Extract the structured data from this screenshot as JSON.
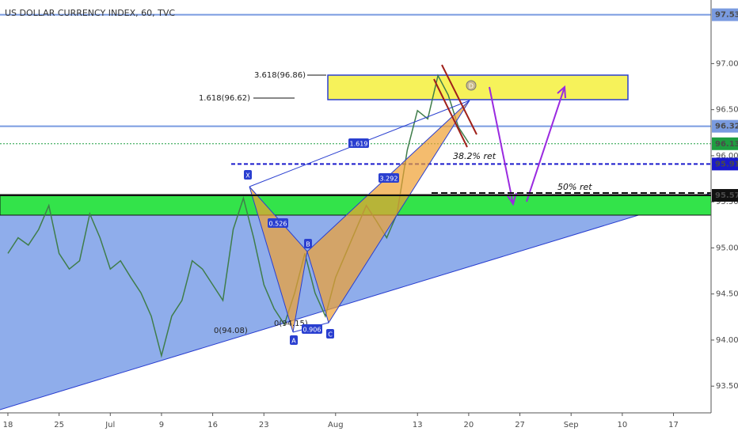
{
  "chart_data": {
    "type": "line",
    "title": "US DOLLAR CURRENCY INDEX, 60, TVC",
    "x": [
      0,
      1,
      2,
      3,
      4,
      5,
      6,
      7,
      8,
      9,
      10,
      11,
      12,
      13,
      14,
      15,
      16,
      17,
      18,
      19,
      20,
      21,
      22,
      23,
      24,
      25,
      26,
      27,
      28,
      29,
      30,
      31,
      32,
      33,
      34,
      35,
      36,
      37,
      38,
      39,
      40,
      41,
      42,
      43,
      44,
      45
    ],
    "values": [
      94.94,
      95.11,
      95.03,
      95.2,
      95.46,
      94.94,
      94.77,
      94.86,
      95.37,
      95.11,
      94.77,
      94.86,
      94.68,
      94.51,
      94.26,
      93.83,
      94.26,
      94.43,
      94.86,
      94.77,
      94.6,
      94.43,
      95.2,
      95.54,
      95.11,
      94.6,
      94.34,
      94.17,
      94.51,
      94.94,
      94.51,
      94.26,
      94.68,
      94.94,
      95.2,
      95.46,
      95.29,
      95.11,
      95.37,
      96.06,
      96.49,
      96.4,
      96.87,
      96.66,
      96.31,
      96.14
    ],
    "color": "#3f7d4a",
    "xlim": [
      -0.77,
      68.67
    ],
    "xticks": [
      {
        "value": 0,
        "label": "18"
      },
      {
        "value": 5,
        "label": "25"
      },
      {
        "value": 10,
        "label": "Jul"
      },
      {
        "value": 15,
        "label": "9"
      },
      {
        "value": 20,
        "label": "16"
      },
      {
        "value": 25,
        "label": "23"
      },
      {
        "value": 32,
        "label": "Aug"
      },
      {
        "value": 40,
        "label": "13"
      },
      {
        "value": 45,
        "label": "20"
      },
      {
        "value": 50,
        "label": "27"
      },
      {
        "value": 55,
        "label": "Sep"
      },
      {
        "value": 60,
        "label": "10"
      },
      {
        "value": 65,
        "label": "17"
      }
    ],
    "ylim": [
      93.21,
      97.69
    ],
    "yticks": [
      {
        "value": 93.5,
        "label": "93.50"
      },
      {
        "value": 94,
        "label": "94.00"
      },
      {
        "value": 94.5,
        "label": "94.50"
      },
      {
        "value": 95,
        "label": "95.00"
      },
      {
        "value": 95.5,
        "label": "95.50"
      },
      {
        "value": 96,
        "label": "96.00"
      },
      {
        "value": 96.5,
        "label": "96.50"
      },
      {
        "value": 97,
        "label": "97.00"
      }
    ],
    "grid": false,
    "levels": [
      {
        "value": 97.53,
        "color": "#7a9be0"
      },
      {
        "value": 96.32,
        "color": "#7a9be0"
      },
      {
        "value": 96.13,
        "color": "#1e9e40"
      },
      {
        "value": 95.91,
        "color": "#1a1acc"
      },
      {
        "value": 95.57,
        "color": "#111111"
      }
    ],
    "annotations": [
      "3.618(96.86)",
      "1.618(96.62)",
      "38.2%  ret",
      "50% ret",
      "0(94.08)",
      "0(94.15)"
    ],
    "pattern": {
      "points": [
        "X",
        "A",
        "B",
        "C",
        "D"
      ],
      "ratios": [
        "0.526",
        "0.906",
        "1.619",
        "3.292"
      ]
    }
  }
}
